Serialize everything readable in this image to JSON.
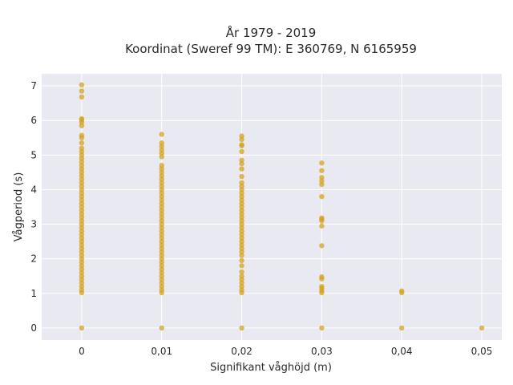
{
  "chart_data": {
    "type": "scatter",
    "title": "År 1979 - 2019",
    "subtitle": "Koordinat (Sweref 99 TM): E 360769, N 6165959",
    "xlabel": "Signifikant våghöjd (m)",
    "ylabel": "Vågperiod (s)",
    "xlim": [
      -0.005,
      0.0525
    ],
    "ylim": [
      -0.35,
      7.35
    ],
    "x_ticks": [
      0,
      0.01,
      0.02,
      0.03,
      0.04,
      0.05
    ],
    "x_tick_labels": [
      "0",
      "0,01",
      "0,02",
      "0,03",
      "0,04",
      "0,05"
    ],
    "y_ticks": [
      0,
      1,
      2,
      3,
      4,
      5,
      6,
      7
    ],
    "y_tick_labels": [
      "0",
      "1",
      "2",
      "3",
      "4",
      "5",
      "6",
      "7"
    ],
    "grid": true,
    "legend": "none",
    "colors": {
      "point": "#d4a31c",
      "plot_bg": "#e9e9f1",
      "grid": "#ffffff"
    },
    "series": [
      {
        "points": [
          [
            0,
            0
          ],
          [
            0,
            1.02
          ],
          [
            0,
            1.1
          ],
          [
            0,
            1.2
          ],
          [
            0,
            1.3
          ],
          [
            0,
            1.4
          ],
          [
            0,
            1.5
          ],
          [
            0,
            1.6
          ],
          [
            0,
            1.7
          ],
          [
            0,
            1.8
          ],
          [
            0,
            1.9
          ],
          [
            0,
            2.0
          ],
          [
            0,
            2.1
          ],
          [
            0,
            2.2
          ],
          [
            0,
            2.3
          ],
          [
            0,
            2.4
          ],
          [
            0,
            2.5
          ],
          [
            0,
            2.6
          ],
          [
            0,
            2.7
          ],
          [
            0,
            2.8
          ],
          [
            0,
            2.9
          ],
          [
            0,
            3.0
          ],
          [
            0,
            3.1
          ],
          [
            0,
            3.2
          ],
          [
            0,
            3.3
          ],
          [
            0,
            3.4
          ],
          [
            0,
            3.5
          ],
          [
            0,
            3.6
          ],
          [
            0,
            3.7
          ],
          [
            0,
            3.8
          ],
          [
            0,
            3.9
          ],
          [
            0,
            4.0
          ],
          [
            0,
            4.1
          ],
          [
            0,
            4.2
          ],
          [
            0,
            4.3
          ],
          [
            0,
            4.4
          ],
          [
            0,
            4.5
          ],
          [
            0,
            4.6
          ],
          [
            0,
            4.7
          ],
          [
            0,
            4.8
          ],
          [
            0,
            4.9
          ],
          [
            0,
            5.0
          ],
          [
            0,
            5.1
          ],
          [
            0,
            5.2
          ],
          [
            0,
            5.35
          ],
          [
            0,
            5.5
          ],
          [
            0,
            5.57
          ],
          [
            0,
            5.85
          ],
          [
            0,
            5.95
          ],
          [
            0,
            6.02
          ],
          [
            0,
            6.05
          ],
          [
            0,
            6.68
          ],
          [
            0,
            6.85
          ],
          [
            0,
            7.03
          ],
          [
            0.01,
            0
          ],
          [
            0.01,
            1.02
          ],
          [
            0.01,
            1.1
          ],
          [
            0.01,
            1.2
          ],
          [
            0.01,
            1.3
          ],
          [
            0.01,
            1.4
          ],
          [
            0.01,
            1.5
          ],
          [
            0.01,
            1.6
          ],
          [
            0.01,
            1.7
          ],
          [
            0.01,
            1.8
          ],
          [
            0.01,
            1.9
          ],
          [
            0.01,
            2.0
          ],
          [
            0.01,
            2.1
          ],
          [
            0.01,
            2.2
          ],
          [
            0.01,
            2.3
          ],
          [
            0.01,
            2.4
          ],
          [
            0.01,
            2.5
          ],
          [
            0.01,
            2.6
          ],
          [
            0.01,
            2.7
          ],
          [
            0.01,
            2.8
          ],
          [
            0.01,
            2.9
          ],
          [
            0.01,
            3.0
          ],
          [
            0.01,
            3.1
          ],
          [
            0.01,
            3.2
          ],
          [
            0.01,
            3.3
          ],
          [
            0.01,
            3.4
          ],
          [
            0.01,
            3.5
          ],
          [
            0.01,
            3.6
          ],
          [
            0.01,
            3.7
          ],
          [
            0.01,
            3.8
          ],
          [
            0.01,
            3.9
          ],
          [
            0.01,
            4.0
          ],
          [
            0.01,
            4.1
          ],
          [
            0.01,
            4.2
          ],
          [
            0.01,
            4.3
          ],
          [
            0.01,
            4.4
          ],
          [
            0.01,
            4.5
          ],
          [
            0.01,
            4.6
          ],
          [
            0.01,
            4.7
          ],
          [
            0.01,
            4.95
          ],
          [
            0.01,
            5.05
          ],
          [
            0.01,
            5.15
          ],
          [
            0.01,
            5.25
          ],
          [
            0.01,
            5.35
          ],
          [
            0.01,
            5.6
          ],
          [
            0.02,
            0
          ],
          [
            0.02,
            1.02
          ],
          [
            0.02,
            1.1
          ],
          [
            0.02,
            1.2
          ],
          [
            0.02,
            1.3
          ],
          [
            0.02,
            1.4
          ],
          [
            0.02,
            1.5
          ],
          [
            0.02,
            1.62
          ],
          [
            0.02,
            1.8
          ],
          [
            0.02,
            1.95
          ],
          [
            0.02,
            2.1
          ],
          [
            0.02,
            2.2
          ],
          [
            0.02,
            2.3
          ],
          [
            0.02,
            2.4
          ],
          [
            0.02,
            2.5
          ],
          [
            0.02,
            2.6
          ],
          [
            0.02,
            2.7
          ],
          [
            0.02,
            2.8
          ],
          [
            0.02,
            2.9
          ],
          [
            0.02,
            3.0
          ],
          [
            0.02,
            3.1
          ],
          [
            0.02,
            3.2
          ],
          [
            0.02,
            3.3
          ],
          [
            0.02,
            3.4
          ],
          [
            0.02,
            3.5
          ],
          [
            0.02,
            3.6
          ],
          [
            0.02,
            3.7
          ],
          [
            0.02,
            3.8
          ],
          [
            0.02,
            3.9
          ],
          [
            0.02,
            4.0
          ],
          [
            0.02,
            4.1
          ],
          [
            0.02,
            4.2
          ],
          [
            0.02,
            4.38
          ],
          [
            0.02,
            4.6
          ],
          [
            0.02,
            4.75
          ],
          [
            0.02,
            4.85
          ],
          [
            0.02,
            5.1
          ],
          [
            0.02,
            5.27
          ],
          [
            0.02,
            5.3
          ],
          [
            0.02,
            5.45
          ],
          [
            0.02,
            5.55
          ],
          [
            0.03,
            0
          ],
          [
            0.03,
            1.02
          ],
          [
            0.03,
            1.08
          ],
          [
            0.03,
            1.15
          ],
          [
            0.03,
            1.2
          ],
          [
            0.03,
            1.42
          ],
          [
            0.03,
            1.48
          ],
          [
            0.03,
            2.38
          ],
          [
            0.03,
            2.95
          ],
          [
            0.03,
            3.1
          ],
          [
            0.03,
            3.15
          ],
          [
            0.03,
            3.18
          ],
          [
            0.03,
            3.8
          ],
          [
            0.03,
            4.15
          ],
          [
            0.03,
            4.25
          ],
          [
            0.03,
            4.35
          ],
          [
            0.03,
            4.55
          ],
          [
            0.03,
            4.77
          ],
          [
            0.04,
            0
          ],
          [
            0.04,
            1.02
          ],
          [
            0.04,
            1.07
          ],
          [
            0.05,
            0
          ]
        ]
      }
    ]
  }
}
